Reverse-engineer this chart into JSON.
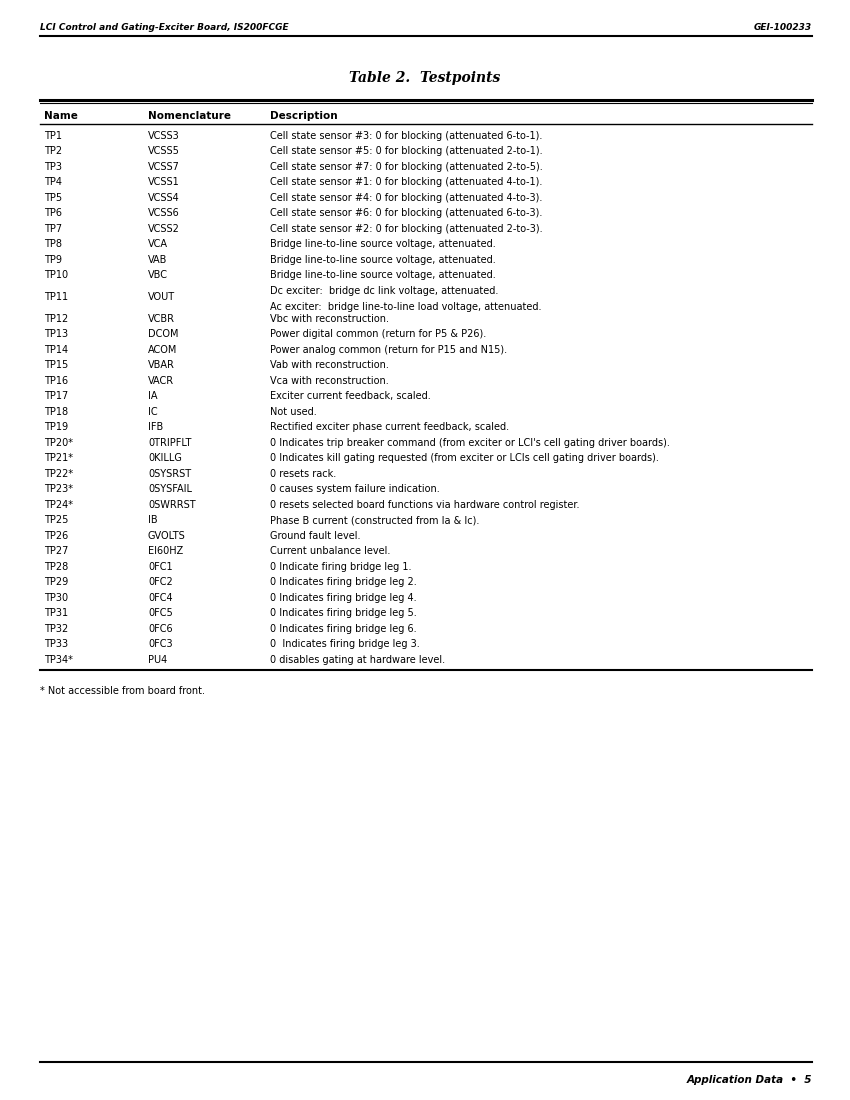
{
  "header_left": "LCI Control and Gating-Exciter Board, IS200FCGE",
  "header_right": "GEI-100233",
  "title": "Table 2.  Testpoints",
  "footer_right": "Application Data  •  5",
  "footnote": "* Not accessible from board front.",
  "col_headers": [
    "Name",
    "Nomenclature",
    "Description"
  ],
  "table_rows": [
    [
      "TP1",
      "VCSS3",
      "Cell state sensor #3: 0 for blocking (attenuated 6-to-1)."
    ],
    [
      "TP2",
      "VCSS5",
      "Cell state sensor #5: 0 for blocking (attenuated 2-to-1)."
    ],
    [
      "TP3",
      "VCSS7",
      "Cell state sensor #7: 0 for blocking (attenuated 2-to-5)."
    ],
    [
      "TP4",
      "VCSS1",
      "Cell state sensor #1: 0 for blocking (attenuated 4-to-1)."
    ],
    [
      "TP5",
      "VCSS4",
      "Cell state sensor #4: 0 for blocking (attenuated 4-to-3)."
    ],
    [
      "TP6",
      "VCSS6",
      "Cell state sensor #6: 0 for blocking (attenuated 6-to-3)."
    ],
    [
      "TP7",
      "VCSS2",
      "Cell state sensor #2: 0 for blocking (attenuated 2-to-3)."
    ],
    [
      "TP8",
      "VCA",
      "Bridge line-to-line source voltage, attenuated."
    ],
    [
      "TP9",
      "VAB",
      "Bridge line-to-line source voltage, attenuated."
    ],
    [
      "TP10",
      "VBC",
      "Bridge line-to-line source voltage, attenuated."
    ],
    [
      "TP11",
      "VOUT",
      "Dc exciter:  bridge dc link voltage, attenuated.\nAc exciter:  bridge line-to-line load voltage, attenuated."
    ],
    [
      "TP12",
      "VCBR",
      "Vbc with reconstruction."
    ],
    [
      "TP13",
      "DCOM",
      "Power digital common (return for P5 & P26)."
    ],
    [
      "TP14",
      "ACOM",
      "Power analog common (return for P15 and N15)."
    ],
    [
      "TP15",
      "VBAR",
      "Vab with reconstruction."
    ],
    [
      "TP16",
      "VACR",
      "Vca with reconstruction."
    ],
    [
      "TP17",
      "IA",
      "Exciter current feedback, scaled."
    ],
    [
      "TP18",
      "IC",
      "Not used."
    ],
    [
      "TP19",
      "IFB",
      "Rectified exciter phase current feedback, scaled."
    ],
    [
      "TP20*",
      "0TRIPFLT",
      "0 Indicates trip breaker command (from exciter or LCI's cell gating driver boards)."
    ],
    [
      "TP21*",
      "0KILLG",
      "0 Indicates kill gating requested (from exciter or LCIs cell gating driver boards)."
    ],
    [
      "TP22*",
      "0SYSRST",
      "0 resets rack."
    ],
    [
      "TP23*",
      "0SYSFAIL",
      "0 causes system failure indication."
    ],
    [
      "TP24*",
      "0SWRRST",
      "0 resets selected board functions via hardware control register."
    ],
    [
      "TP25",
      "IB",
      "Phase B current (constructed from Ia & Ic)."
    ],
    [
      "TP26",
      "GVOLTS",
      "Ground fault level."
    ],
    [
      "TP27",
      "EI60HZ",
      "Current unbalance level."
    ],
    [
      "TP28",
      "0FC1",
      "0 Indicate firing bridge leg 1."
    ],
    [
      "TP29",
      "0FC2",
      "0 Indicates firing bridge leg 2."
    ],
    [
      "TP30",
      "0FC4",
      "0 Indicates firing bridge leg 4."
    ],
    [
      "TP31",
      "0FC5",
      "0 Indicates firing bridge leg 5."
    ],
    [
      "TP32",
      "0FC6",
      "0 Indicates firing bridge leg 6."
    ],
    [
      "TP33",
      "0FC3",
      "0  Indicates firing bridge leg 3."
    ],
    [
      "TP34*",
      "PU4",
      "0 disables gating at hardware level."
    ]
  ]
}
